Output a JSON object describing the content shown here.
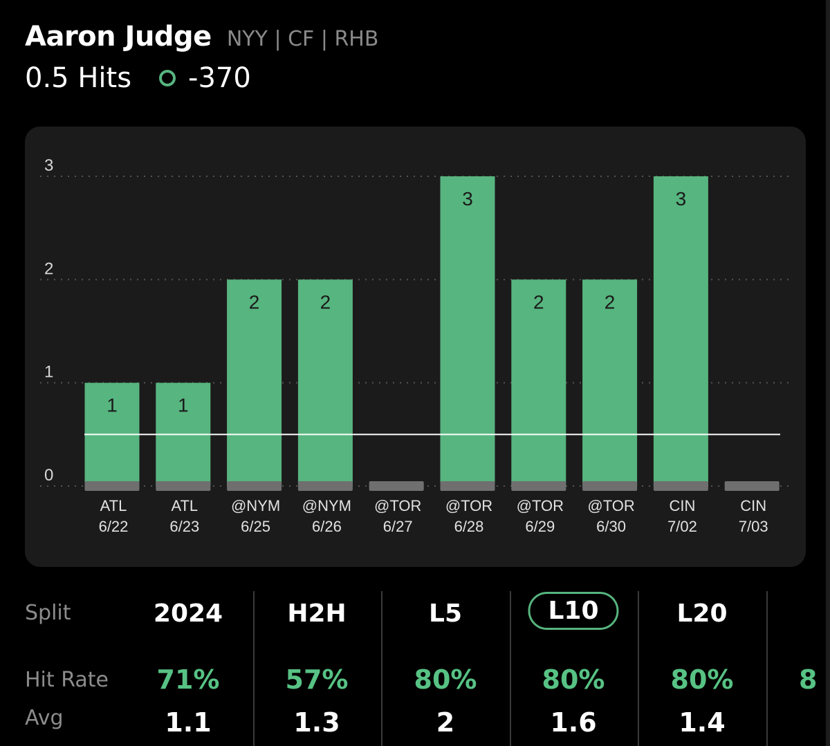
{
  "player": {
    "name": "Aaron Judge",
    "meta": "NYY | CF | RHB",
    "prop_line": "0.5 Hits",
    "odds": "-370",
    "odds_icon": "circle-outline-icon"
  },
  "colors": {
    "accent": "#57b57f",
    "bar": "#57b57f",
    "bar_base": "#6f6f6f",
    "card": "#1b1b1b",
    "rate": "#57c284"
  },
  "chart_data": {
    "type": "bar",
    "categories": [
      "ATL 6/22",
      "ATL 6/23",
      "@NYM 6/25",
      "@NYM 6/26",
      "@TOR 6/27",
      "@TOR 6/28",
      "@TOR 6/29",
      "@TOR 6/30",
      "CIN 7/02",
      "CIN 7/03"
    ],
    "opponents": [
      "ATL",
      "ATL",
      "@NYM",
      "@NYM",
      "@TOR",
      "@TOR",
      "@TOR",
      "@TOR",
      "CIN",
      "CIN"
    ],
    "dates": [
      "6/22",
      "6/23",
      "6/25",
      "6/26",
      "6/27",
      "6/28",
      "6/29",
      "6/30",
      "7/02",
      "7/03"
    ],
    "values": [
      1,
      1,
      2,
      2,
      0,
      3,
      2,
      2,
      3,
      0
    ],
    "threshold": 0.5,
    "ylim": [
      0,
      3
    ],
    "yticks": [
      "0",
      "1",
      "2",
      "3"
    ],
    "grid": true
  },
  "splits": {
    "row_labels": {
      "split": "Split",
      "hit_rate": "Hit Rate",
      "avg": "Avg"
    },
    "columns": [
      {
        "label": "2024",
        "hit_rate": "71%",
        "avg": "1.1",
        "selected": false
      },
      {
        "label": "H2H",
        "hit_rate": "57%",
        "avg": "1.3",
        "selected": false
      },
      {
        "label": "L5",
        "hit_rate": "80%",
        "avg": "2",
        "selected": false
      },
      {
        "label": "L10",
        "hit_rate": "80%",
        "avg": "1.6",
        "selected": true
      },
      {
        "label": "L20",
        "hit_rate": "80%",
        "avg": "1.4",
        "selected": false
      }
    ],
    "partial_next_rate": "8"
  }
}
